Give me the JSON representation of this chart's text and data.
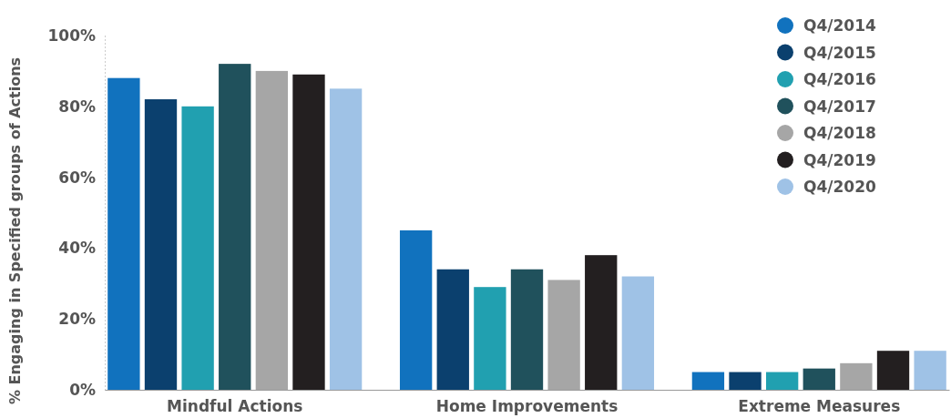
{
  "chart_data": {
    "type": "bar",
    "ylabel": "% Engaging in Specified groups of Actions",
    "categories": [
      "Mindful Actions",
      "Home Improvements",
      "Extreme Measures"
    ],
    "series": [
      {
        "name": "Q4/2014",
        "color": "#1172be",
        "values": [
          88,
          45,
          5
        ]
      },
      {
        "name": "Q4/2015",
        "color": "#0b406e",
        "values": [
          82,
          34,
          5
        ]
      },
      {
        "name": "Q4/2016",
        "color": "#21a0b0",
        "values": [
          80,
          29,
          5
        ]
      },
      {
        "name": "Q4/2017",
        "color": "#20515c",
        "values": [
          92,
          34,
          6
        ]
      },
      {
        "name": "Q4/2018",
        "color": "#a6a6a6",
        "values": [
          90,
          31,
          7.5
        ]
      },
      {
        "name": "Q4/2019",
        "color": "#231f20",
        "values": [
          89,
          38,
          11
        ]
      },
      {
        "name": "Q4/2020",
        "color": "#9fc2e6",
        "values": [
          85,
          32,
          11
        ]
      }
    ],
    "ylim": [
      0,
      100
    ],
    "yticks": [
      {
        "value": 0,
        "label": "0%"
      },
      {
        "value": 20,
        "label": "20%"
      },
      {
        "value": 40,
        "label": "40%"
      },
      {
        "value": 60,
        "label": "60%"
      },
      {
        "value": 80,
        "label": "80%"
      },
      {
        "value": 100,
        "label": "100%"
      }
    ],
    "grid": false,
    "legend": "top right"
  }
}
